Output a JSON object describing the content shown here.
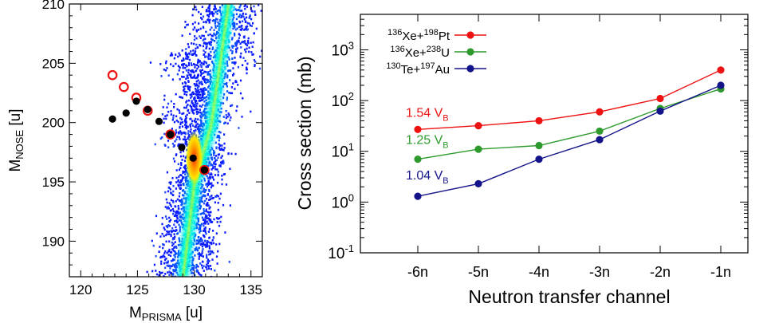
{
  "colors": {
    "series_red": "#ee1111",
    "series_green": "#2e9a2e",
    "series_blue": "#14148a",
    "marker_black": "#000000",
    "marker_red_open": "#ee1111",
    "heatmap_low": "#0a1aff",
    "heatmap_high": "#ff3300"
  },
  "chart_data": [
    {
      "type": "heatmap",
      "xlabel": "M",
      "xlabel_sub": "PRISMA",
      "xlabel_unit": "[u]",
      "ylabel": "M",
      "ylabel_sub": "NOSE",
      "ylabel_unit": "[u]",
      "xlim": [
        119,
        136
      ],
      "ylim": [
        187,
        210
      ],
      "x_ticks": [
        120,
        125,
        130,
        135
      ],
      "y_ticks": [
        190,
        195,
        200,
        205,
        210
      ],
      "density_ridge": {
        "points": [
          [
            133,
            210
          ],
          [
            131.5,
            200
          ],
          [
            130,
            195
          ],
          [
            129,
            187
          ]
        ],
        "peak": [
          130,
          197
        ]
      },
      "black_points": [
        [
          122.8,
          200.3
        ],
        [
          124.0,
          200.8
        ],
        [
          124.9,
          201.8
        ],
        [
          125.9,
          201.1
        ],
        [
          126.9,
          200.1
        ],
        [
          127.9,
          199.0
        ],
        [
          128.9,
          197.9
        ],
        [
          129.9,
          197.0
        ],
        [
          130.9,
          196.0
        ]
      ],
      "red_open_points": [
        [
          122.8,
          204.0
        ],
        [
          123.8,
          203.0
        ],
        [
          124.9,
          202.1
        ],
        [
          125.9,
          201.0
        ],
        [
          127.9,
          199.0
        ],
        [
          130.9,
          196.0
        ]
      ]
    },
    {
      "type": "line",
      "xlabel": "Neutron transfer channel",
      "ylabel": "Cross section (mb)",
      "yscale": "log",
      "ylim": [
        0.1,
        5000
      ],
      "y_ticks": [
        {
          "base": "10",
          "exp": "-1",
          "value": 0.1
        },
        {
          "base": "10",
          "exp": "0",
          "value": 1
        },
        {
          "base": "10",
          "exp": "1",
          "value": 10
        },
        {
          "base": "10",
          "exp": "2",
          "value": 100
        },
        {
          "base": "10",
          "exp": "3",
          "value": 1000
        }
      ],
      "categories": [
        "-6n",
        "-5n",
        "-4n",
        "-3n",
        "-2n",
        "-1n"
      ],
      "legend_position": "top-left",
      "series": [
        {
          "name_parts": [
            "136",
            "Xe+",
            "198",
            "Pt"
          ],
          "color_key": "series_red",
          "values": [
            27,
            32,
            40,
            60,
            110,
            400
          ],
          "label_main": "1.54 V",
          "label_sub": "B",
          "label_y": 48
        },
        {
          "name_parts": [
            "136",
            "Xe+",
            "238",
            "U"
          ],
          "color_key": "series_green",
          "values": [
            7,
            11,
            13,
            25,
            70,
            170
          ],
          "label_main": "1.25 V",
          "label_sub": "B",
          "label_y": 14
        },
        {
          "name_parts": [
            "130",
            "Te+",
            "197",
            "Au"
          ],
          "color_key": "series_blue",
          "values": [
            1.3,
            2.3,
            7,
            17,
            62,
            200
          ],
          "label_main": "1.04 V",
          "label_sub": "B",
          "label_y": 2.8
        }
      ]
    }
  ]
}
